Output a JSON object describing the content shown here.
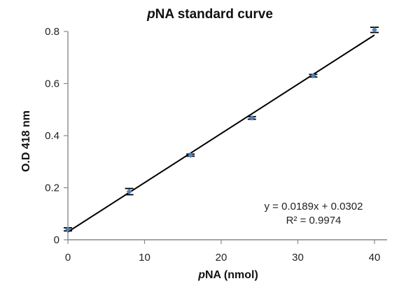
{
  "chart_data": {
    "type": "scatter",
    "title": "pNA standard curve",
    "title_italic_part": "p",
    "title_rest": "NA standard curve",
    "xlabel_italic_part": "p",
    "xlabel_rest": "NA (nmol)",
    "ylabel": "O.D 418 nm",
    "xlim": [
      0,
      40
    ],
    "ylim": [
      0,
      0.8
    ],
    "x_ticks": [
      "0",
      "10",
      "20",
      "30",
      "40"
    ],
    "y_ticks": [
      "0",
      "0.2",
      "0.4",
      "0.6",
      "0.8"
    ],
    "grid": false,
    "legend": "none",
    "series": [
      {
        "x": [
          0,
          8,
          16,
          24,
          32,
          40
        ],
        "y": [
          0.04,
          0.185,
          0.325,
          0.468,
          0.63,
          0.806
        ],
        "error": [
          0.006,
          0.012,
          0.004,
          0.005,
          0.005,
          0.01
        ],
        "color": "#4f81bd"
      }
    ],
    "trendline": {
      "slope": 0.0189,
      "intercept": 0.0302,
      "color": "#000000",
      "equation": "y = 0.0189x + 0.0302",
      "r_squared": "R² = 0.9974"
    }
  }
}
